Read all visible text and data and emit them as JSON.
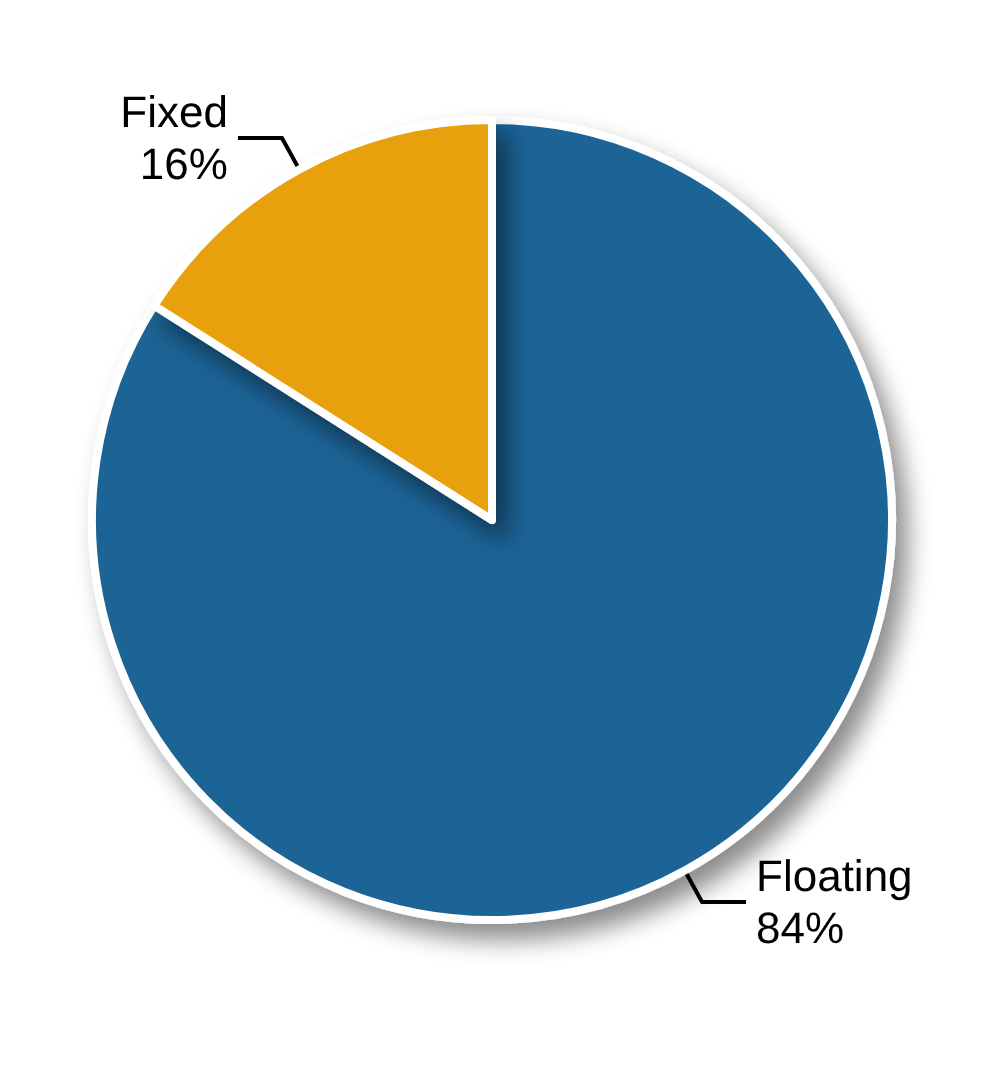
{
  "chart_data": {
    "type": "pie",
    "categories": [
      "Floating",
      "Fixed"
    ],
    "values": [
      84,
      16
    ],
    "value_labels": [
      "84%",
      "16%"
    ],
    "colors": [
      "#1a6496",
      "#e8a00a"
    ],
    "legend": false
  }
}
